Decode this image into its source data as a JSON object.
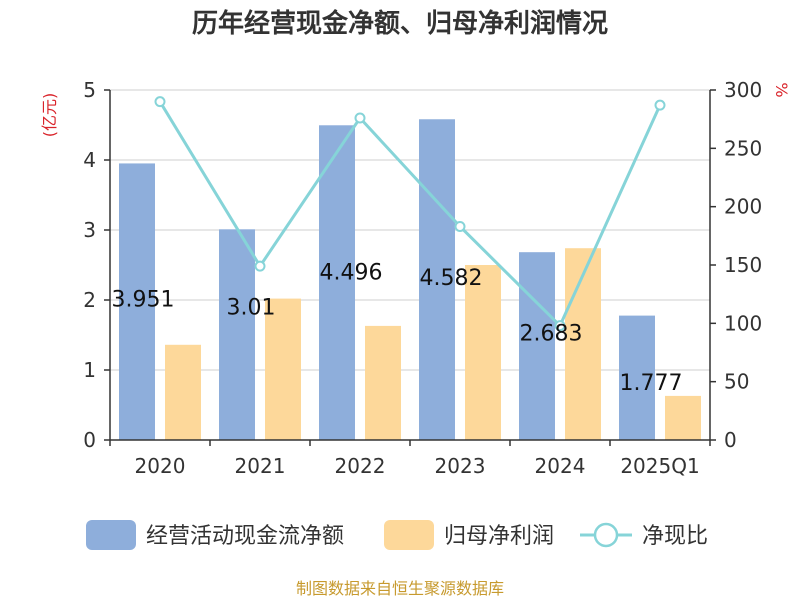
{
  "chart_data": {
    "type": "bar",
    "title": "历年经营现金净额、归母净利润情况",
    "categories": [
      "2020",
      "2021",
      "2022",
      "2023",
      "2024",
      "2025Q1"
    ],
    "series": [
      {
        "name": "经营活动现金流净额",
        "type": "bar",
        "axis": "left",
        "color": "#8eaedb",
        "values": [
          3.951,
          3.01,
          4.496,
          4.582,
          2.683,
          1.777
        ]
      },
      {
        "name": "归母净利润",
        "type": "bar",
        "axis": "left",
        "color": "#fdd89a",
        "values": [
          1.36,
          2.02,
          1.63,
          2.5,
          2.74,
          0.63
        ]
      },
      {
        "name": "净现比",
        "type": "line",
        "axis": "right",
        "color": "#86d4d8",
        "values": [
          290,
          149,
          276,
          183,
          98,
          287
        ]
      }
    ],
    "data_labels": [
      "3.951",
      "3.01",
      "4.496",
      "4.582",
      "2.683",
      "1.777"
    ],
    "left_axis": {
      "unit": "(亿元)",
      "ylim": [
        0,
        5
      ],
      "ticks": [
        "0",
        "1",
        "2",
        "3",
        "4",
        "5"
      ]
    },
    "right_axis": {
      "unit": "%",
      "ylim": [
        0,
        300
      ],
      "ticks": [
        "0",
        "50",
        "100",
        "150",
        "200",
        "250",
        "300"
      ]
    },
    "grid": true,
    "legend_position": "bottom"
  },
  "footer": {
    "source": "制图数据来自恒生聚源数据库"
  }
}
